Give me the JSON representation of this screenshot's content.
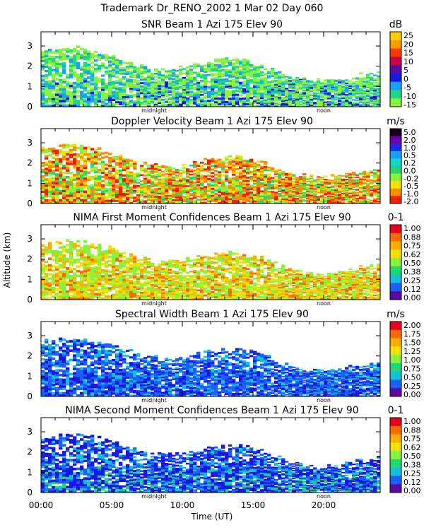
{
  "header": {
    "line1": "Trademark Dr_RENO_2002    1 Mar 02 Day 060"
  },
  "shared_axes": {
    "ylabel": "Altitude (km)",
    "xlabel": "Time (UT)",
    "x_tick_labels": [
      "00:00",
      "05:00",
      "10:00",
      "15:00",
      "20:00"
    ],
    "x_ticks_hours": [
      0,
      5,
      10,
      15,
      20
    ],
    "xlim_hours": [
      0,
      24
    ],
    "y_tick_labels": [
      "0",
      "1",
      "2",
      "3"
    ],
    "ylim_km": [
      0,
      3.7
    ],
    "markers": [
      {
        "label": "midnight",
        "hour": 8.0
      },
      {
        "label": "noon",
        "hour": 20.0
      }
    ]
  },
  "chart_data": [
    {
      "type": "heatmap",
      "title": "SNR Beam 1 Azi 175 Elev 90",
      "unit": "dB",
      "colorbar_labels": [
        "25",
        "20",
        "15",
        "10",
        "5",
        "0",
        "-5",
        "-10",
        "-15"
      ],
      "colorbar_colors": [
        "#ffd000",
        "#ff9a00",
        "#ff3a00",
        "#cc0044",
        "#5a0aa0",
        "#1818e0",
        "#1aa0ff",
        "#20d880",
        "#8af23c"
      ],
      "fill_palette": [
        "#8af23c",
        "#8af23c",
        "#20d880",
        "#1aa0ff",
        "#1818e0"
      ]
    },
    {
      "type": "heatmap",
      "title": "Doppler Velocity Beam 1 Azi 175 Elev 90",
      "unit": "m/s",
      "colorbar_labels": [
        "5.0",
        "2.0",
        "1.0",
        "0.5",
        "0.2",
        "0.0",
        "-0.2",
        "-0.5",
        "-1.0",
        "-2.0"
      ],
      "colorbar_colors": [
        "#120018",
        "#6a00b0",
        "#1e2ae6",
        "#1aa0ff",
        "#14d8cc",
        "#20d870",
        "#8af23c",
        "#f2e200",
        "#ff8c00",
        "#f02000"
      ],
      "fill_palette": [
        "#8af23c",
        "#f2e200",
        "#ff8c00",
        "#f02000",
        "#ff8c00",
        "#20d870",
        "#f02000"
      ]
    },
    {
      "type": "heatmap",
      "title": "NIMA First Moment Confidences Beam 1 Azi 175 Elev 90",
      "unit": "0-1",
      "colorbar_labels": [
        "1.00",
        "0.88",
        "0.75",
        "0.62",
        "0.50",
        "0.38",
        "0.25",
        "0.12",
        "0.00"
      ],
      "colorbar_colors": [
        "#e8001a",
        "#ff6a00",
        "#ffae00",
        "#f2e200",
        "#8af23c",
        "#20d870",
        "#14c0d8",
        "#1a60ff",
        "#5a0aa0"
      ],
      "fill_palette": [
        "#8af23c",
        "#f2e200",
        "#ffae00",
        "#8af23c",
        "#ff6a00",
        "#f2e200"
      ]
    },
    {
      "type": "heatmap",
      "title": "Spectral Width Beam 1 Azi 175 Elev 90",
      "unit": "m/s",
      "colorbar_labels": [
        "2.00",
        "1.75",
        "1.50",
        "1.25",
        "1.00",
        "0.75",
        "0.50",
        "0.25",
        "0.00"
      ],
      "colorbar_colors": [
        "#e8001a",
        "#ff6a00",
        "#ffae00",
        "#f2e200",
        "#8af23c",
        "#20d870",
        "#14c0d8",
        "#1a60ff",
        "#5a0aa0"
      ],
      "fill_palette": [
        "#1a60ff",
        "#1818e0",
        "#14c0d8",
        "#1a60ff",
        "#1818e0"
      ]
    },
    {
      "type": "heatmap",
      "title": "NIMA Second Moment Confidences Beam 1 Azi 175 Elev 90",
      "unit": "0-1",
      "colorbar_labels": [
        "1.00",
        "0.88",
        "0.75",
        "0.62",
        "0.50",
        "0.38",
        "0.25",
        "0.12",
        "0.00"
      ],
      "colorbar_colors": [
        "#e8001a",
        "#ff6a00",
        "#ffae00",
        "#f2e200",
        "#8af23c",
        "#20d870",
        "#14c0d8",
        "#1a60ff",
        "#5a0aa0"
      ],
      "fill_palette": [
        "#1818e0",
        "#1a60ff",
        "#1818e0",
        "#14c0d8",
        "#20d870"
      ]
    }
  ]
}
